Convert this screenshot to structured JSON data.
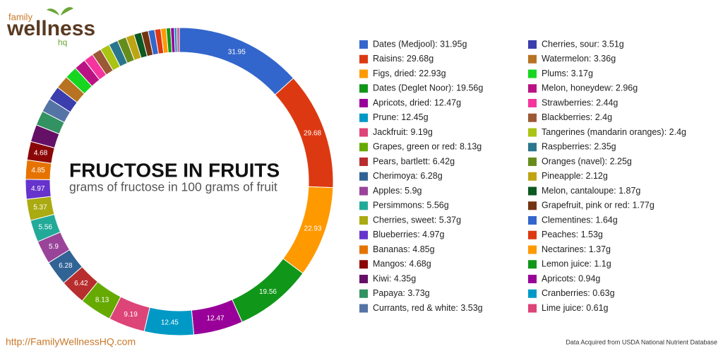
{
  "logo": {
    "top": "family",
    "main": "wellness",
    "sub": "hq"
  },
  "footer": {
    "url": "http://FamilyWellnessHQ.com",
    "source": "Data Acquired from USDA National Nutrient Database"
  },
  "chart_data": {
    "type": "donut",
    "title": "FRUCTOSE IN FRUITS",
    "subtitle": "grams of fructose in 100 grams of fruit",
    "categories": [
      "Dates (Medjool): 31.95g",
      "Raisins: 29.68g",
      "Figs, dried: 22.93g",
      "Dates (Deglet Noor): 19.56g",
      "Apricots, dried: 12.47g",
      "Prune: 12.45g",
      "Jackfruit: 9.19g",
      "Grapes, green or red: 8.13g",
      "Pears, bartlett: 6.42g",
      "Cherimoya: 6.28g",
      "Apples: 5.9g",
      "Persimmons: 5.56g",
      "Cherries, sweet: 5.37g",
      "Blueberries: 4.97g",
      "Bananas: 4.85g",
      "Mangos: 4.68g",
      "Kiwi: 4.35g",
      "Papaya: 3.73g",
      "Currants, red & white: 3.53g",
      "Cherries, sour: 3.51g",
      "Watermelon: 3.36g",
      "Plums: 3.17g",
      "Melon, honeydew: 2.96g",
      "Strawberries: 2.44g",
      "Blackberries: 2.4g",
      "Tangerines (mandarin oranges): 2.4g",
      "Raspberries: 2.35g",
      "Oranges (navel): 2.25g",
      "Pineapple: 2.12g",
      "Melon, cantaloupe: 1.87g",
      "Grapefruit, pink or red: 1.77g",
      "Clementines: 1.64g",
      "Peaches: 1.53g",
      "Nectarines: 1.37g",
      "Lemon juice: 1.1g",
      "Apricots: 0.94g",
      "Cranberries: 0.63g",
      "Lime juice: 0.61g"
    ],
    "values": [
      31.95,
      29.68,
      22.93,
      19.56,
      12.47,
      12.45,
      9.19,
      8.13,
      6.42,
      6.28,
      5.9,
      5.56,
      5.37,
      4.97,
      4.85,
      4.68,
      4.35,
      3.73,
      3.53,
      3.51,
      3.36,
      3.17,
      2.96,
      2.44,
      2.4,
      2.4,
      2.35,
      2.25,
      2.12,
      1.87,
      1.77,
      1.64,
      1.53,
      1.37,
      1.1,
      0.94,
      0.63,
      0.61
    ],
    "colors": [
      "#3366cc",
      "#dc3912",
      "#ff9900",
      "#109618",
      "#990099",
      "#0099c6",
      "#dd4477",
      "#66aa00",
      "#b82e2e",
      "#316395",
      "#994499",
      "#22aa99",
      "#aaaa11",
      "#6633cc",
      "#e67300",
      "#8b0707",
      "#651067",
      "#329262",
      "#5574a6",
      "#3b3eac",
      "#b77322",
      "#16d620",
      "#b91383",
      "#f4359e",
      "#9c5935",
      "#a9c413",
      "#2a778d",
      "#668d1c",
      "#bea413",
      "#0c5922",
      "#743411",
      "#3366cc",
      "#dc3912",
      "#ff9900",
      "#109618",
      "#990099",
      "#0099c6",
      "#dd4477"
    ],
    "legend": "right"
  }
}
